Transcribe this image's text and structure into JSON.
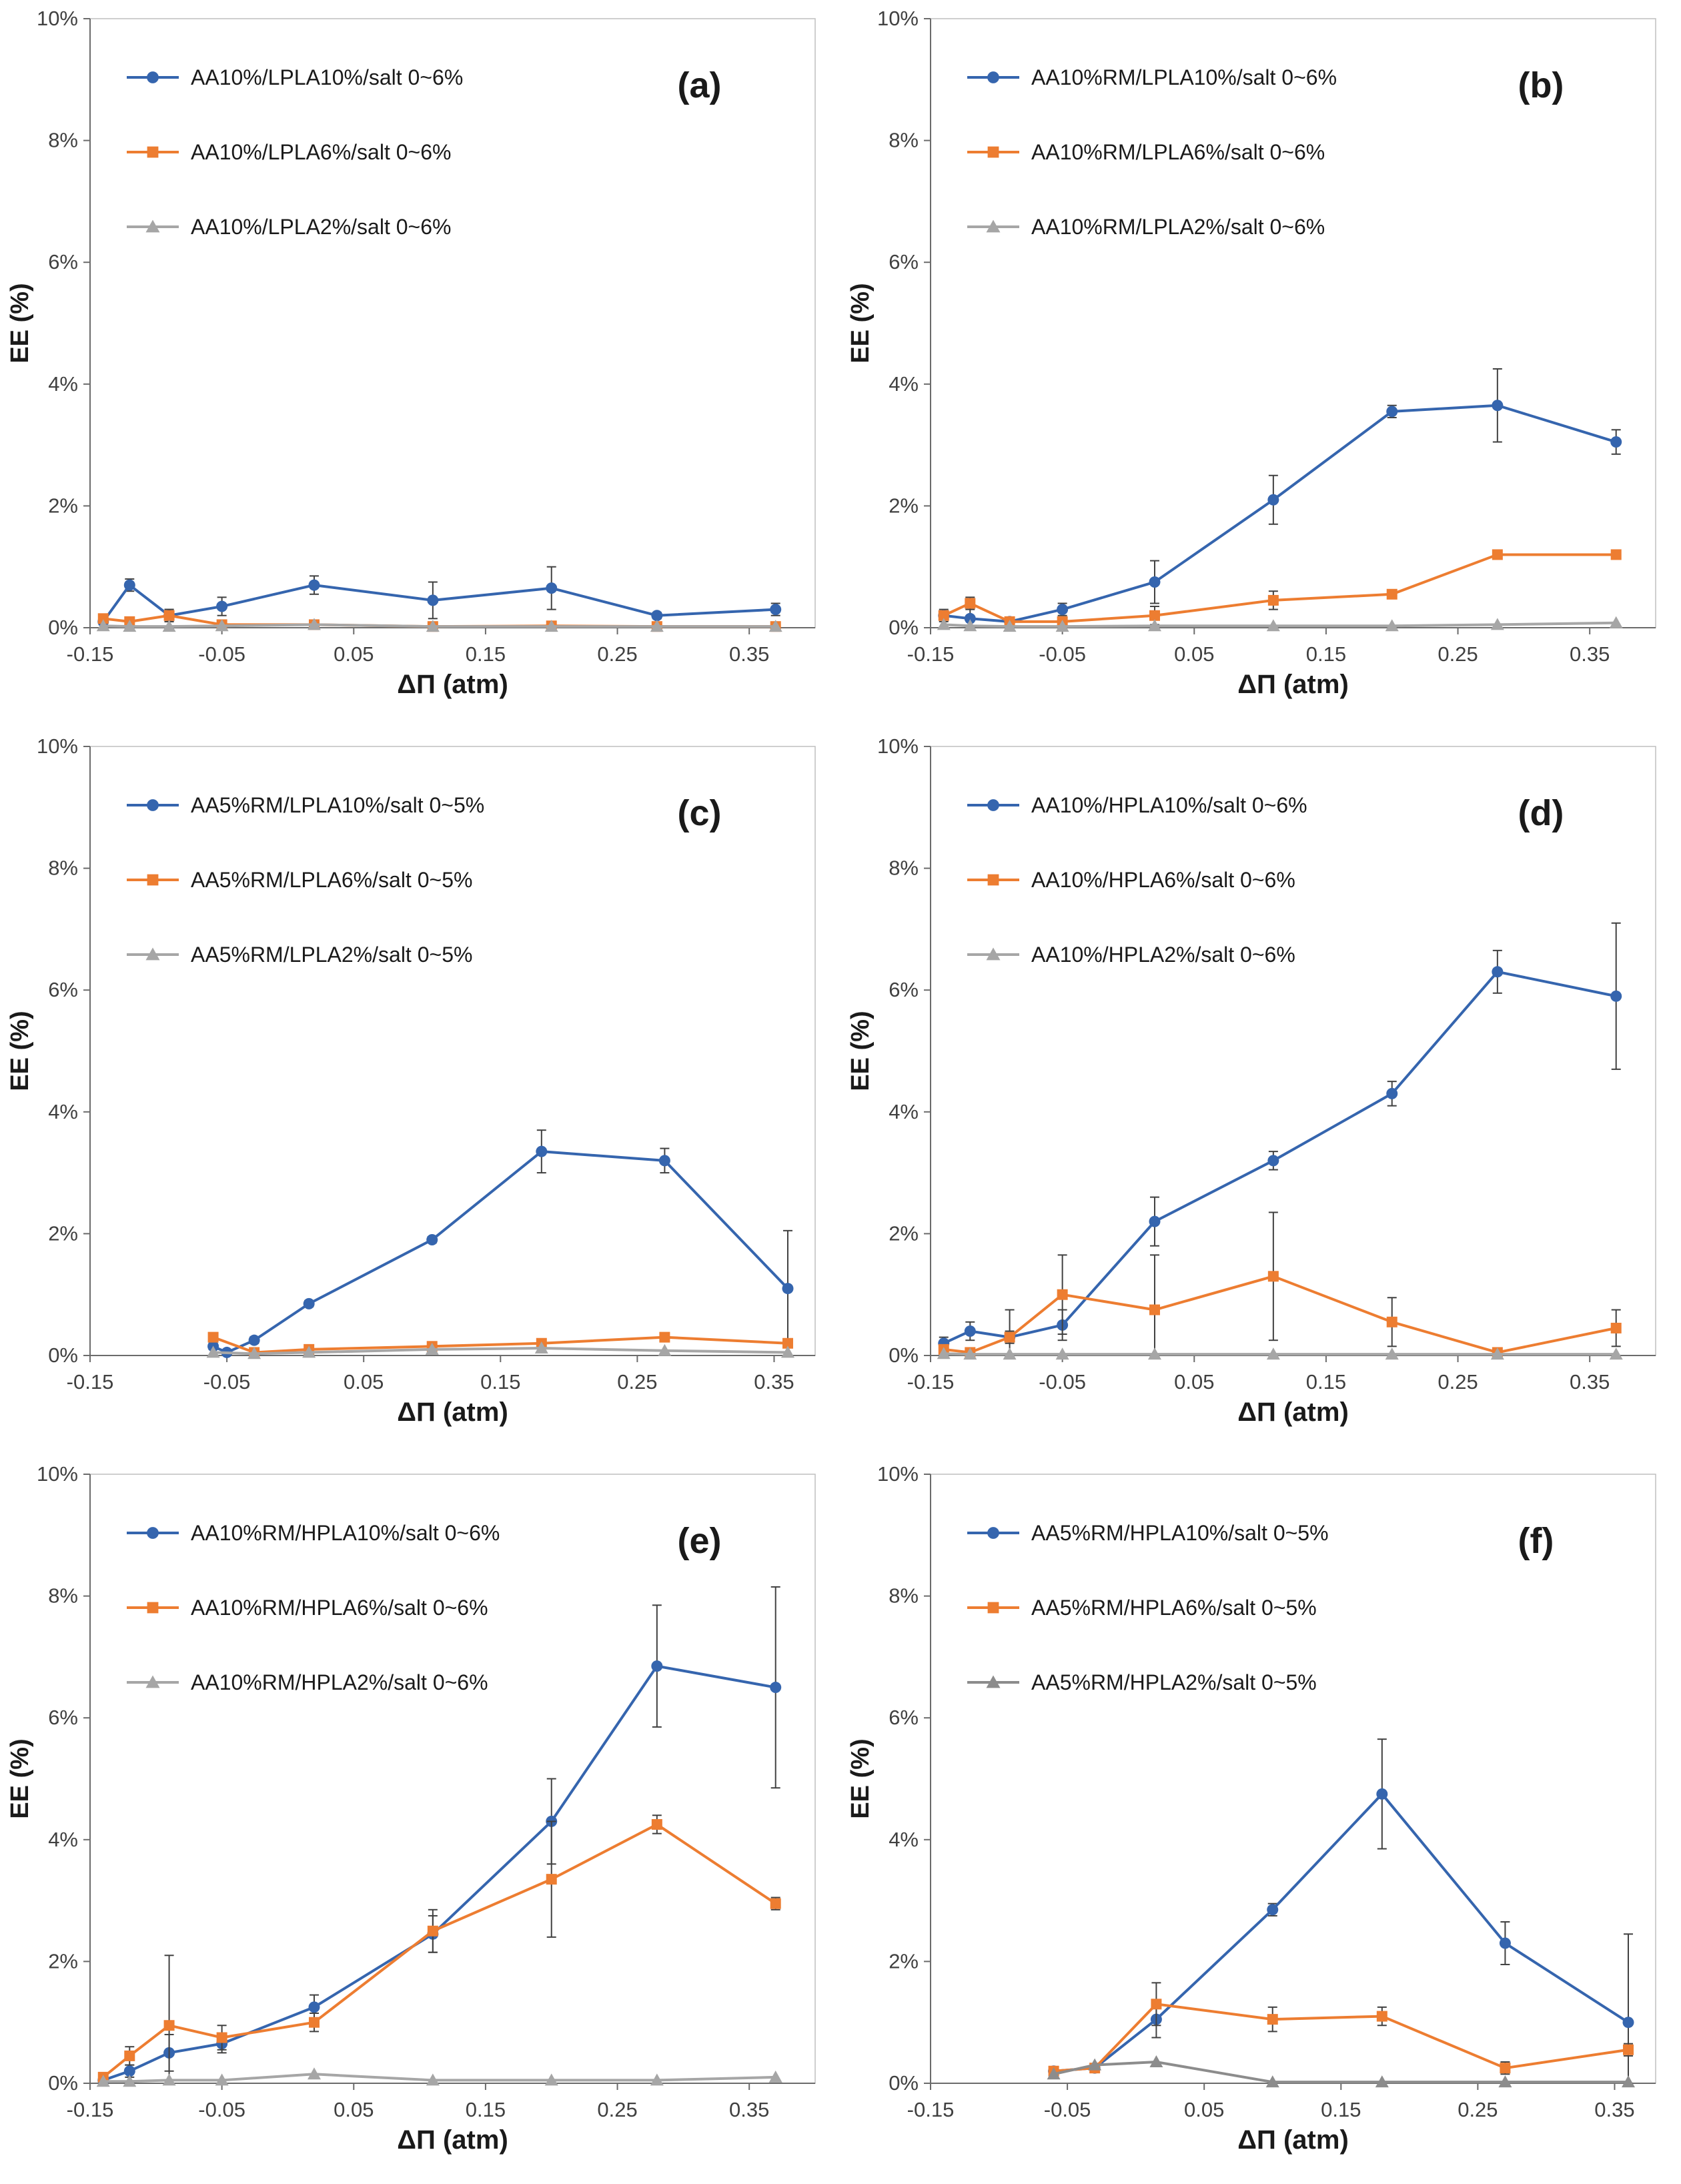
{
  "colors": {
    "blue": "#3565AE",
    "orange": "#ED7D31",
    "gray": "#A6A6A6",
    "gray_dark": "#8C8C8C",
    "error_bar": "#404040",
    "axis": "#6b6b6b",
    "border": "#bfbfbf",
    "tick_text": "#404040",
    "label_text": "#1a1a1a"
  },
  "chart_data": [
    {
      "type": "line",
      "panel_label": "(a)",
      "xlabel": "ΔΠ (atm)",
      "ylabel": "EE (%)",
      "xlim": [
        -0.15,
        0.4
      ],
      "ylim": [
        0,
        10
      ],
      "yticks": [
        0,
        2,
        4,
        6,
        8,
        10
      ],
      "ytick_labels": [
        "0%",
        "2%",
        "4%",
        "6%",
        "8%",
        "10%"
      ],
      "xticks": [
        -0.15,
        -0.05,
        0.05,
        0.15,
        0.25,
        0.35
      ],
      "legend_position": "top-left-inside",
      "grid": false,
      "series": [
        {
          "name": "AA10%/LPLA10%/salt 0~6%",
          "color_key": "blue",
          "marker": "circle",
          "x": [
            -0.14,
            -0.12,
            -0.09,
            -0.05,
            0.02,
            0.11,
            0.2,
            0.28,
            0.37
          ],
          "y": [
            0.1,
            0.7,
            0.2,
            0.35,
            0.7,
            0.45,
            0.65,
            0.2,
            0.3
          ],
          "err": [
            0.05,
            0.1,
            0.1,
            0.15,
            0.15,
            0.3,
            0.35,
            0.05,
            0.1
          ]
        },
        {
          "name": "AA10%/LPLA6%/salt 0~6%",
          "color_key": "orange",
          "marker": "square",
          "x": [
            -0.14,
            -0.12,
            -0.09,
            -0.05,
            0.02,
            0.11,
            0.2,
            0.28,
            0.37
          ],
          "y": [
            0.15,
            0.1,
            0.2,
            0.05,
            0.05,
            0.02,
            0.03,
            0.02,
            0.02
          ],
          "err": [
            0.05,
            0.05,
            0.1,
            0.03,
            0.03,
            0.0,
            0.0,
            0.0,
            0.0
          ]
        },
        {
          "name": "AA10%/LPLA2%/salt 0~6%",
          "color_key": "gray",
          "marker": "triangle",
          "x": [
            -0.14,
            -0.12,
            -0.09,
            -0.05,
            0.02,
            0.11,
            0.2,
            0.28,
            0.37
          ],
          "y": [
            0.03,
            0.02,
            0.02,
            0.03,
            0.05,
            0.02,
            0.02,
            0.02,
            0.02
          ],
          "err": [
            0,
            0,
            0,
            0,
            0,
            0,
            0,
            0,
            0
          ]
        }
      ]
    },
    {
      "type": "line",
      "panel_label": "(b)",
      "xlabel": "ΔΠ (atm)",
      "ylabel": "EE (%)",
      "xlim": [
        -0.15,
        0.4
      ],
      "ylim": [
        0,
        10
      ],
      "yticks": [
        0,
        2,
        4,
        6,
        8,
        10
      ],
      "ytick_labels": [
        "0%",
        "2%",
        "4%",
        "6%",
        "8%",
        "10%"
      ],
      "xticks": [
        -0.15,
        -0.05,
        0.05,
        0.15,
        0.25,
        0.35
      ],
      "legend_position": "top-left-inside",
      "grid": false,
      "series": [
        {
          "name": "AA10%RM/LPLA10%/salt 0~6%",
          "color_key": "blue",
          "marker": "circle",
          "x": [
            -0.14,
            -0.12,
            -0.09,
            -0.05,
            0.02,
            0.11,
            0.2,
            0.28,
            0.37
          ],
          "y": [
            0.2,
            0.15,
            0.1,
            0.3,
            0.75,
            2.1,
            3.55,
            3.65,
            3.05
          ],
          "err": [
            0.1,
            0.2,
            0.05,
            0.1,
            0.35,
            0.4,
            0.1,
            0.6,
            0.2
          ]
        },
        {
          "name": "AA10%RM/LPLA6%/salt 0~6%",
          "color_key": "orange",
          "marker": "square",
          "x": [
            -0.14,
            -0.12,
            -0.09,
            -0.05,
            0.02,
            0.11,
            0.2,
            0.28,
            0.37
          ],
          "y": [
            0.2,
            0.4,
            0.1,
            0.1,
            0.2,
            0.45,
            0.55,
            1.2,
            1.2
          ],
          "err": [
            0.05,
            0.1,
            0.05,
            0.05,
            0.15,
            0.15,
            0.05,
            0.05,
            0.05
          ]
        },
        {
          "name": "AA10%RM/LPLA2%/salt 0~6%",
          "color_key": "gray",
          "marker": "triangle",
          "x": [
            -0.14,
            -0.12,
            -0.09,
            -0.05,
            0.02,
            0.11,
            0.2,
            0.28,
            0.37
          ],
          "y": [
            0.05,
            0.03,
            0.02,
            0.02,
            0.03,
            0.03,
            0.03,
            0.05,
            0.08
          ],
          "err": [
            0,
            0,
            0,
            0,
            0,
            0,
            0,
            0,
            0
          ]
        }
      ]
    },
    {
      "type": "line",
      "panel_label": "(c)",
      "xlabel": "ΔΠ (atm)",
      "ylabel": "EE (%)",
      "xlim": [
        -0.15,
        0.38
      ],
      "ylim": [
        0,
        10
      ],
      "yticks": [
        0,
        2,
        4,
        6,
        8,
        10
      ],
      "ytick_labels": [
        "0%",
        "2%",
        "4%",
        "6%",
        "8%",
        "10%"
      ],
      "xticks": [
        -0.15,
        -0.05,
        0.05,
        0.15,
        0.25,
        0.35
      ],
      "legend_position": "top-left-inside",
      "grid": false,
      "series": [
        {
          "name": "AA5%RM/LPLA10%/salt 0~5%",
          "color_key": "blue",
          "marker": "circle",
          "x": [
            -0.06,
            -0.05,
            -0.03,
            0.01,
            0.1,
            0.18,
            0.27,
            0.36
          ],
          "y": [
            0.15,
            0.05,
            0.25,
            0.85,
            1.9,
            3.35,
            3.2,
            1.1
          ],
          "err": [
            0.05,
            0.03,
            0.05,
            0.05,
            0.05,
            0.35,
            0.2,
            0.95
          ]
        },
        {
          "name": "AA5%RM/LPLA6%/salt 0~5%",
          "color_key": "orange",
          "marker": "square",
          "x": [
            -0.06,
            -0.03,
            0.01,
            0.1,
            0.18,
            0.27,
            0.36
          ],
          "y": [
            0.3,
            0.05,
            0.1,
            0.15,
            0.2,
            0.3,
            0.2
          ],
          "err": [
            0.05,
            0.0,
            0.0,
            0.05,
            0.05,
            0.05,
            0.05
          ]
        },
        {
          "name": "AA5%RM/LPLA2%/salt 0~5%",
          "color_key": "gray",
          "marker": "triangle",
          "x": [
            -0.06,
            -0.03,
            0.01,
            0.1,
            0.18,
            0.27,
            0.36
          ],
          "y": [
            0.05,
            0.03,
            0.05,
            0.1,
            0.12,
            0.08,
            0.05
          ],
          "err": [
            0,
            0,
            0,
            0,
            0,
            0,
            0
          ]
        }
      ]
    },
    {
      "type": "line",
      "panel_label": "(d)",
      "xlabel": "ΔΠ (atm)",
      "ylabel": "EE (%)",
      "xlim": [
        -0.15,
        0.4
      ],
      "ylim": [
        0,
        10
      ],
      "yticks": [
        0,
        2,
        4,
        6,
        8,
        10
      ],
      "ytick_labels": [
        "0%",
        "2%",
        "4%",
        "6%",
        "8%",
        "10%"
      ],
      "xticks": [
        -0.15,
        -0.05,
        0.05,
        0.15,
        0.25,
        0.35
      ],
      "legend_position": "top-left-inside",
      "grid": false,
      "series": [
        {
          "name": "AA10%/HPLA10%/salt 0~6%",
          "color_key": "blue",
          "marker": "circle",
          "x": [
            -0.14,
            -0.12,
            -0.09,
            -0.05,
            0.02,
            0.11,
            0.2,
            0.28,
            0.37
          ],
          "y": [
            0.2,
            0.4,
            0.3,
            0.5,
            2.2,
            3.2,
            4.3,
            6.3,
            5.9
          ],
          "err": [
            0.1,
            0.15,
            0.1,
            0.25,
            0.4,
            0.15,
            0.2,
            0.35,
            1.2
          ]
        },
        {
          "name": "AA10%/HPLA6%/salt 0~6%",
          "color_key": "orange",
          "marker": "square",
          "x": [
            -0.14,
            -0.12,
            -0.09,
            -0.05,
            0.02,
            0.11,
            0.2,
            0.28,
            0.37
          ],
          "y": [
            0.1,
            0.05,
            0.3,
            1.0,
            0.75,
            1.3,
            0.55,
            0.05,
            0.45
          ],
          "err": [
            0.05,
            0.05,
            0.45,
            0.65,
            0.9,
            1.05,
            0.4,
            0.05,
            0.3
          ]
        },
        {
          "name": "AA10%/HPLA2%/salt 0~6%",
          "color_key": "gray",
          "marker": "triangle",
          "x": [
            -0.14,
            -0.12,
            -0.09,
            -0.05,
            0.02,
            0.11,
            0.2,
            0.28,
            0.37
          ],
          "y": [
            0.03,
            0.02,
            0.02,
            0.02,
            0.02,
            0.02,
            0.02,
            0.02,
            0.02
          ],
          "err": [
            0,
            0,
            0,
            0,
            0,
            0,
            0,
            0,
            0
          ]
        }
      ]
    },
    {
      "type": "line",
      "panel_label": "(e)",
      "xlabel": "ΔΠ (atm)",
      "ylabel": "EE (%)",
      "xlim": [
        -0.15,
        0.4
      ],
      "ylim": [
        0,
        10
      ],
      "yticks": [
        0,
        2,
        4,
        6,
        8,
        10
      ],
      "ytick_labels": [
        "0%",
        "2%",
        "4%",
        "6%",
        "8%",
        "10%"
      ],
      "xticks": [
        -0.15,
        -0.05,
        0.05,
        0.15,
        0.25,
        0.35
      ],
      "legend_position": "top-left-inside",
      "grid": false,
      "series": [
        {
          "name": "AA10%RM/HPLA10%/salt 0~6%",
          "color_key": "blue",
          "marker": "circle",
          "x": [
            -0.14,
            -0.12,
            -0.09,
            -0.05,
            0.02,
            0.11,
            0.2,
            0.28,
            0.37
          ],
          "y": [
            0.05,
            0.2,
            0.5,
            0.65,
            1.25,
            2.45,
            4.3,
            6.85,
            6.5
          ],
          "err": [
            0.03,
            0.1,
            0.3,
            0.15,
            0.2,
            0.3,
            0.7,
            1.0,
            1.65
          ]
        },
        {
          "name": "AA10%RM/HPLA6%/salt 0~6%",
          "color_key": "orange",
          "marker": "square",
          "x": [
            -0.14,
            -0.12,
            -0.09,
            -0.05,
            0.02,
            0.11,
            0.2,
            0.28,
            0.37
          ],
          "y": [
            0.1,
            0.45,
            0.95,
            0.75,
            1.0,
            2.5,
            3.35,
            4.25,
            2.95
          ],
          "err": [
            0.05,
            0.15,
            1.15,
            0.2,
            0.15,
            0.35,
            0.95,
            0.15,
            0.1
          ]
        },
        {
          "name": "AA10%RM/HPLA2%/salt 0~6%",
          "color_key": "gray",
          "marker": "triangle",
          "x": [
            -0.14,
            -0.12,
            -0.09,
            -0.05,
            0.02,
            0.11,
            0.2,
            0.28,
            0.37
          ],
          "y": [
            0.03,
            0.03,
            0.05,
            0.05,
            0.15,
            0.05,
            0.05,
            0.05,
            0.1
          ],
          "err": [
            0,
            0,
            0,
            0,
            0,
            0,
            0,
            0,
            0
          ]
        }
      ]
    },
    {
      "type": "line",
      "panel_label": "(f)",
      "xlabel": "ΔΠ (atm)",
      "ylabel": "EE (%)",
      "xlim": [
        -0.15,
        0.38
      ],
      "ylim": [
        0,
        10
      ],
      "yticks": [
        0,
        2,
        4,
        6,
        8,
        10
      ],
      "ytick_labels": [
        "0%",
        "2%",
        "4%",
        "6%",
        "8%",
        "10%"
      ],
      "xticks": [
        -0.15,
        -0.05,
        0.05,
        0.15,
        0.25,
        0.35
      ],
      "legend_position": "top-left-inside",
      "grid": false,
      "series": [
        {
          "name": "AA5%RM/HPLA10%/salt 0~5%",
          "color_key": "blue",
          "marker": "circle",
          "x": [
            -0.06,
            -0.03,
            0.015,
            0.1,
            0.18,
            0.27,
            0.36
          ],
          "y": [
            0.2,
            0.25,
            1.05,
            2.85,
            4.75,
            2.3,
            1.0
          ],
          "err": [
            0.05,
            0.05,
            0.3,
            0.1,
            0.9,
            0.35,
            1.45
          ]
        },
        {
          "name": "AA5%RM/HPLA6%/salt 0~5%",
          "color_key": "orange",
          "marker": "square",
          "x": [
            -0.06,
            -0.03,
            0.015,
            0.1,
            0.18,
            0.27,
            0.36
          ],
          "y": [
            0.2,
            0.25,
            1.3,
            1.05,
            1.1,
            0.25,
            0.55
          ],
          "err": [
            0.05,
            0.05,
            0.35,
            0.2,
            0.15,
            0.1,
            0.1
          ]
        },
        {
          "name": "AA5%RM/HPLA2%/salt 0~5%",
          "color_key": "gray_dark",
          "marker": "triangle",
          "x": [
            -0.06,
            -0.03,
            0.015,
            0.1,
            0.18,
            0.27,
            0.36
          ],
          "y": [
            0.15,
            0.3,
            0.35,
            0.02,
            0.02,
            0.02,
            0.02
          ],
          "err": [
            0,
            0,
            0,
            0,
            0,
            0,
            0
          ]
        }
      ]
    }
  ]
}
